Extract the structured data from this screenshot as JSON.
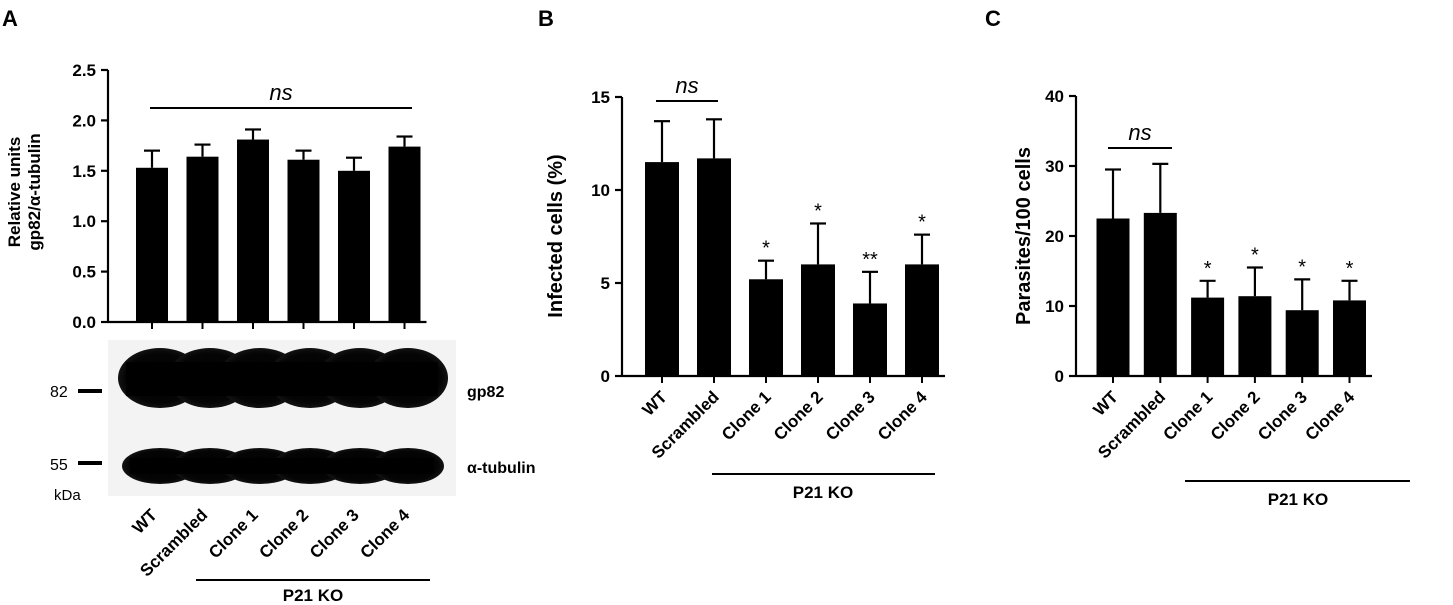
{
  "panels": {
    "a": {
      "letter": "A",
      "ylabel_line1": "Relative units",
      "ylabel_line2": "gp82/α-tubulin"
    },
    "b": {
      "letter": "B"
    },
    "c": {
      "letter": "C"
    }
  },
  "western_blot": {
    "marker_82": "82",
    "marker_55": "55",
    "unit": "kDa",
    "band_top": "gp82",
    "band_bottom": "α-tubulin"
  },
  "chart_data": [
    {
      "type": "bar",
      "panel": "A",
      "title": "",
      "xlabel": "",
      "ylabel": "Relative units gp82/α-tubulin",
      "categories": [
        "WT",
        "Scrambled",
        "Clone 1",
        "Clone 2",
        "Clone 3",
        "Clone 4"
      ],
      "values": [
        1.53,
        1.64,
        1.81,
        1.61,
        1.5,
        1.74
      ],
      "errors": [
        0.17,
        0.12,
        0.1,
        0.09,
        0.13,
        0.1
      ],
      "significance": [
        "",
        "",
        "",
        "",
        "",
        ""
      ],
      "ylim": [
        0,
        2.5
      ],
      "yticks": [
        "0.0",
        "0.5",
        "1.0",
        "1.5",
        "2.0",
        "2.5"
      ],
      "bracket_label": "ns",
      "group_label": "P21 KO",
      "bar_color": "#000000"
    },
    {
      "type": "bar",
      "panel": "B",
      "title": "",
      "xlabel": "",
      "ylabel": "Infected cells (%)",
      "categories": [
        "WT",
        "Scrambled",
        "Clone 1",
        "Clone 2",
        "Clone 3",
        "Clone 4"
      ],
      "values": [
        11.5,
        11.7,
        5.2,
        6.0,
        3.9,
        6.0
      ],
      "errors": [
        2.2,
        2.1,
        1.0,
        2.2,
        1.7,
        1.6
      ],
      "significance": [
        "",
        "",
        "*",
        "*",
        "**",
        "*"
      ],
      "ylim": [
        0,
        15
      ],
      "yticks": [
        "0",
        "5",
        "10",
        "15"
      ],
      "bracket_label": "ns",
      "group_label": "P21 KO",
      "bar_color": "#000000"
    },
    {
      "type": "bar",
      "panel": "C",
      "title": "",
      "xlabel": "",
      "ylabel": "Parasites/100 cells",
      "categories": [
        "WT",
        "Scrambled",
        "Clone 1",
        "Clone 2",
        "Clone 3",
        "Clone 4"
      ],
      "values": [
        22.5,
        23.3,
        11.2,
        11.4,
        9.4,
        10.8
      ],
      "errors": [
        7.0,
        7.0,
        2.4,
        4.1,
        4.4,
        2.8
      ],
      "significance": [
        "",
        "",
        "*",
        "*",
        "*",
        "*"
      ],
      "ylim": [
        0,
        40
      ],
      "yticks": [
        "0",
        "10",
        "20",
        "30",
        "40"
      ],
      "bracket_label": "ns",
      "group_label": "P21 KO",
      "bar_color": "#000000"
    }
  ]
}
